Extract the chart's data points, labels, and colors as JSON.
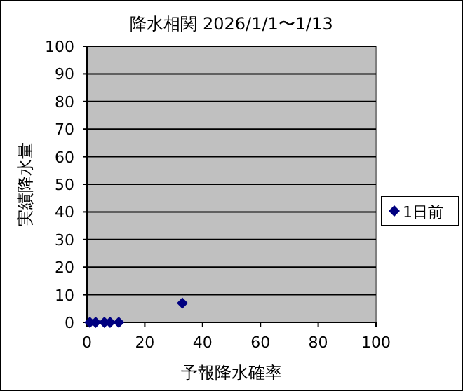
{
  "chart_data": {
    "type": "scatter",
    "title": "降水相関 2026/1/1〜1/13",
    "xlabel": "予報降水確率",
    "ylabel": "実績降水量",
    "series": [
      {
        "name": "1日前",
        "color": "#000080",
        "x": [
          1,
          3,
          6,
          8,
          11,
          33
        ],
        "values": [
          0,
          0,
          0,
          0,
          0,
          7
        ]
      }
    ],
    "xlim": [
      0,
      100
    ],
    "ylim": [
      0,
      100
    ],
    "xticks": [
      0,
      20,
      40,
      60,
      80,
      100
    ],
    "yticks": [
      0,
      10,
      20,
      30,
      40,
      50,
      60,
      70,
      80,
      90,
      100
    ],
    "grid": "y",
    "legend": "right",
    "marker": "diamond"
  }
}
